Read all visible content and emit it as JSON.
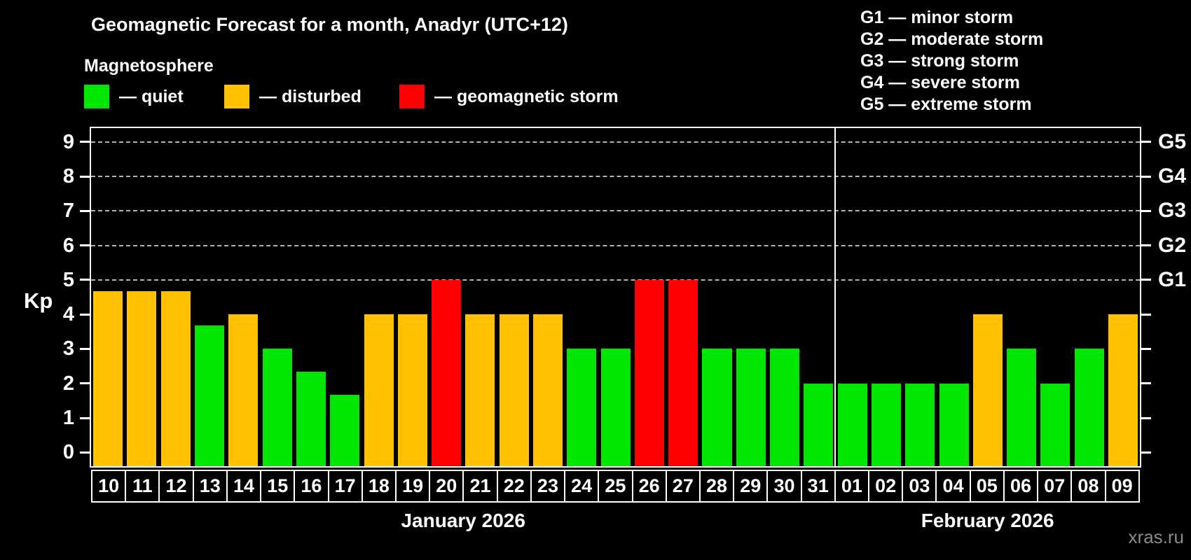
{
  "title": "Geomagnetic Forecast for a month, Anadyr (UTC+12)",
  "legend": {
    "heading": "Magnetosphere",
    "items": [
      {
        "key": "quiet",
        "swatch_color": "#00E600",
        "label": "— quiet"
      },
      {
        "key": "disturbed",
        "swatch_color": "#FFC100",
        "label": "— disturbed"
      },
      {
        "key": "storm",
        "swatch_color": "#FF0000",
        "label": "— geomagnetic storm"
      }
    ]
  },
  "storm_scale_legend": [
    "G1 — minor storm",
    "G2 — moderate storm",
    "G3 — strong storm",
    "G4 — severe storm",
    "G5 — extreme storm"
  ],
  "watermark": "xras.ru",
  "chart_data": {
    "type": "bar",
    "title": "Geomagnetic Forecast for a month, Anadyr (UTC+12)",
    "ylabel": "Kp",
    "ylim": [
      -0.4,
      9.4
    ],
    "yticks": [
      0,
      1,
      2,
      3,
      4,
      5,
      6,
      7,
      8,
      9
    ],
    "gridlines_kp": [
      5,
      6,
      7,
      8,
      9
    ],
    "grid": "dashed horizontal at storm levels only",
    "legend_position": "top",
    "right_axis": [
      {
        "kp": 5,
        "label": "G1"
      },
      {
        "kp": 6,
        "label": "G2"
      },
      {
        "kp": 7,
        "label": "G3"
      },
      {
        "kp": 8,
        "label": "G4"
      },
      {
        "kp": 9,
        "label": "G5"
      }
    ],
    "colors": {
      "quiet": "#00E600",
      "disturbed": "#FFC100",
      "storm": "#FF0000"
    },
    "months": [
      {
        "label": "January 2026",
        "day_count": 22
      },
      {
        "label": "February 2026",
        "day_count": 9
      }
    ],
    "days": [
      {
        "day": "10",
        "kp": 4.67,
        "status": "disturbed"
      },
      {
        "day": "11",
        "kp": 4.67,
        "status": "disturbed"
      },
      {
        "day": "12",
        "kp": 4.67,
        "status": "disturbed"
      },
      {
        "day": "13",
        "kp": 3.67,
        "status": "quiet"
      },
      {
        "day": "14",
        "kp": 4,
        "status": "disturbed"
      },
      {
        "day": "15",
        "kp": 3,
        "status": "quiet"
      },
      {
        "day": "16",
        "kp": 2.33,
        "status": "quiet"
      },
      {
        "day": "17",
        "kp": 1.67,
        "status": "quiet"
      },
      {
        "day": "18",
        "kp": 4,
        "status": "disturbed"
      },
      {
        "day": "19",
        "kp": 4,
        "status": "disturbed"
      },
      {
        "day": "20",
        "kp": 5,
        "status": "storm"
      },
      {
        "day": "21",
        "kp": 4,
        "status": "disturbed"
      },
      {
        "day": "22",
        "kp": 4,
        "status": "disturbed"
      },
      {
        "day": "23",
        "kp": 4,
        "status": "disturbed"
      },
      {
        "day": "24",
        "kp": 3,
        "status": "quiet"
      },
      {
        "day": "25",
        "kp": 3,
        "status": "quiet"
      },
      {
        "day": "26",
        "kp": 5,
        "status": "storm"
      },
      {
        "day": "27",
        "kp": 5,
        "status": "storm"
      },
      {
        "day": "28",
        "kp": 3,
        "status": "quiet"
      },
      {
        "day": "29",
        "kp": 3,
        "status": "quiet"
      },
      {
        "day": "30",
        "kp": 3,
        "status": "quiet"
      },
      {
        "day": "31",
        "kp": 2,
        "status": "quiet"
      },
      {
        "day": "01",
        "kp": 2,
        "status": "quiet"
      },
      {
        "day": "02",
        "kp": 2,
        "status": "quiet"
      },
      {
        "day": "03",
        "kp": 2,
        "status": "quiet"
      },
      {
        "day": "04",
        "kp": 2,
        "status": "quiet"
      },
      {
        "day": "05",
        "kp": 4,
        "status": "disturbed"
      },
      {
        "day": "06",
        "kp": 3,
        "status": "quiet"
      },
      {
        "day": "07",
        "kp": 2,
        "status": "quiet"
      },
      {
        "day": "08",
        "kp": 3,
        "status": "quiet"
      },
      {
        "day": "09",
        "kp": 4,
        "status": "disturbed"
      }
    ]
  }
}
